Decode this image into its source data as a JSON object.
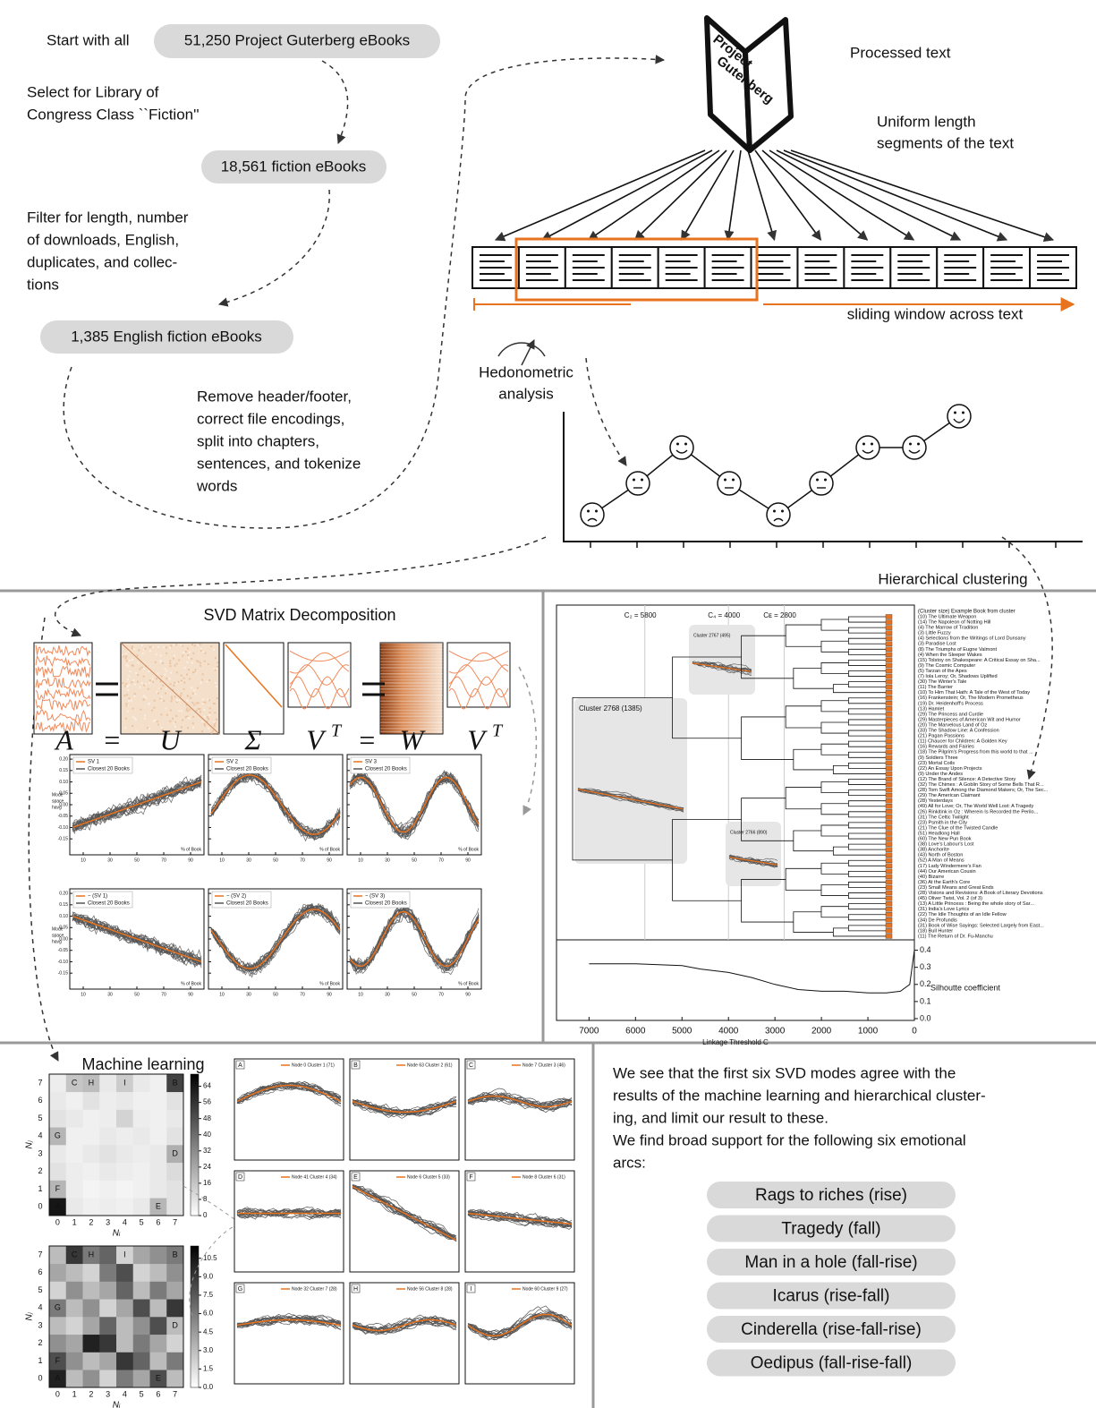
{
  "pipeline": {
    "start": "Start with all",
    "boxes": [
      "51,250 Project Guterberg eBooks",
      "18,561 fiction eBooks",
      "1,385 English fiction eBooks"
    ],
    "steps": [
      [
        "Select for Library of",
        "Congress Class ``Fiction''"
      ],
      [
        "Filter for length, number",
        "of downloads, English,",
        "duplicates, and collec-",
        "tions"
      ],
      [
        "Remove header/footer,",
        "correct file encodings,",
        "split into chapters,",
        "sentences, and tokenize",
        "words"
      ]
    ]
  },
  "processing": {
    "book_title": [
      "Project",
      "Gutenberg"
    ],
    "processed": "Processed text",
    "segments": [
      "Uniform length",
      "segments of the text"
    ],
    "window": "sliding window across text",
    "hedonometric": [
      "Hedonometric",
      "analysis"
    ]
  },
  "svd": {
    "title": "SVD Matrix Decomposition",
    "equation": [
      {
        "text": "A"
      },
      {
        "text": "="
      },
      {
        "text": "U"
      },
      {
        "text": "Σ"
      },
      {
        "text": "V",
        "sup": "T"
      },
      {
        "text": "="
      },
      {
        "text": "W"
      },
      {
        "text": "V",
        "sup": "T"
      }
    ],
    "panels": [
      "SV 1",
      "SV 2",
      "SV 3",
      "− (SV 1)",
      "− (SV 2)",
      "− (SV 3)"
    ],
    "closest": "Closest 20 Books",
    "ylabel": [
      "Mode",
      "space",
      "havg"
    ],
    "xlabel": "% of Book",
    "xlim": [
      0,
      100
    ],
    "ylim": [
      -0.22,
      0.22
    ],
    "xticks": [
      10,
      30,
      50,
      70,
      90
    ],
    "yticks": [
      {
        "value": 0.2,
        "label": "0.20"
      },
      {
        "value": 0.15,
        "label": "0.15"
      },
      {
        "value": 0.1,
        "label": "0.10"
      },
      {
        "value": 0.05,
        "label": "0.05"
      },
      {
        "value": 0,
        "label": "0.00"
      },
      {
        "value": -0.05,
        "label": "-0.05"
      },
      {
        "value": -0.1,
        "label": "-0.10"
      },
      {
        "value": -0.15,
        "label": "-0.15"
      }
    ]
  },
  "clustering": {
    "title": "Hierarchical clustering",
    "list_header": "(Cluster size) Example Book from cluster",
    "books": [
      "(10) The Ultimate Weapon",
      "(14) The Napoleon of Notting Hill",
      "(4) The Marrow of Tradition",
      "(3) Little Fuzzy",
      "(4) Selections from the Writings of Lord Dunsany",
      "(3) Paradise Lost",
      "(8) The Triumphs of Eugne Valmont",
      "(4) When the Sleeper Wakes",
      "(15) Tolstoy on Shakespeare: A Critical Essay on Sha...",
      "(9) The Cosmic Computer",
      "(5) Tarzan of the Apes",
      "(7) Iola Leroy; Or, Shadows Uplifted",
      "(30) The Winter's Tale",
      "(11) The Barrier",
      "(10) To Him That Hath: A Tale of the West of Today",
      "(16) Frankenstein; Or, The Modern Prometheus",
      "(19) Dr. Heidenhoff's Process",
      "(13) Hamlet",
      "(29) The Princess and Curdie",
      "(29) Masterpieces of American Wit and Humor",
      "(20) The Marvelous Land of Oz",
      "(33) The Shadow Line: A Confession",
      "(21) Pagan Passions",
      "(11) Chaucer for Children: A Golden Key",
      "(16) Rewards and Fairies",
      "(18) The Pilgrim's Progress from this world to that ...",
      "(9) Soldiers Three",
      "(23) Mortal Coils",
      "(22) An Essay Upon Projects",
      "(9) Under the Andes",
      "(12) The Brand of Silence: A Detective Story",
      "(32) The Chimes : A Goblin Story of Some Bells That R...",
      "(28) Tom Swift Among the Diamond Makers; Or, The Sec...",
      "(29) The American Claimant",
      "(28) Yesterdays",
      "(49) All for Love; Or, The World Well Lost: A Tragedy",
      "(26) Rinkitink in Oz : Wherein Is Recorded the Perilo...",
      "(31) The Celtic Twilight",
      "(23) Psmith in the City",
      "(21) The Clue of the Twisted Candle",
      "(51) Headlong Hall",
      "(60) The New Pun Book",
      "(38) Love's Labour's Lost",
      "(38) Anchorite",
      "(43) North of Boston",
      "(52) A Man of Means",
      "(17) Lady Windermere's Fan",
      "(44) Our American Cousin",
      "(40) Bizarre",
      "(36) At the Earth's Core",
      "(23) Small Means and Great Ends",
      "(28) Visions and Revisions: A Book of Literary Devotions",
      "(45) Oliver Twist, Vol. 2 (of 3)",
      "(13) A Little Princess : Being the whole story of Sar...",
      "(31) India's Love Lyrics",
      "(22) The Idle Thoughts of an Idle Fellow",
      "(34) De Profundis",
      "(31) Book of Wise Sayings: Selected Largely from East...",
      "(18) Bull Hunter",
      "(11) The Return of Dr. Fu-Manchu"
    ],
    "thresholds": [
      {
        "value": 5800,
        "label": "C₂ = 5800"
      },
      {
        "value": 4000,
        "label": "C₄ = 4000"
      },
      {
        "value": 2800,
        "label": "Cᴇ = 2800"
      }
    ],
    "clusters": [
      "Cluster 2768 (1385)",
      "Cluster 2767 (495)",
      "Cluster 2766 (890)"
    ],
    "xlabel": "Linkage Threshold  C",
    "xlim": [
      7700,
      0
    ],
    "xticks": [
      7000,
      6000,
      5000,
      4000,
      3000,
      2000,
      1000,
      0
    ],
    "silhouette": {
      "label": "Silhoutte coefficient",
      "ylim": [
        0,
        0.45
      ],
      "yticks": [
        {
          "value": 0,
          "label": "0.0"
        },
        {
          "value": 0.1,
          "label": "0.1"
        },
        {
          "value": 0.2,
          "label": "0.2"
        },
        {
          "value": 0.3,
          "label": "0.3"
        },
        {
          "value": 0.4,
          "label": "0.4"
        }
      ],
      "x": [
        7000,
        6000,
        5000,
        4600,
        4000,
        3500,
        3000,
        2500,
        2000,
        1500,
        1000,
        600,
        300,
        100,
        0
      ],
      "values": [
        0.32,
        0.32,
        0.31,
        0.29,
        0.27,
        0.24,
        0.2,
        0.17,
        0.16,
        0.16,
        0.15,
        0.15,
        0.16,
        0.2,
        0.4
      ]
    }
  },
  "ml": {
    "title": "Machine learning",
    "xlabel": "Nᵢ",
    "ylabel": "Nⱼ",
    "ticks": [
      0,
      1,
      2,
      3,
      4,
      5,
      6,
      7
    ],
    "heatmaps": [
      {
        "clim": [
          0,
          70
        ],
        "cbticks": [
          0,
          8,
          16,
          24,
          32,
          40,
          48,
          56,
          64
        ],
        "values": [
          [
            64,
            6,
            4,
            5,
            4,
            6,
            20,
            8
          ],
          [
            20,
            5,
            3,
            4,
            3,
            4,
            6,
            8
          ],
          [
            8,
            5,
            4,
            6,
            5,
            4,
            6,
            10
          ],
          [
            6,
            4,
            6,
            8,
            6,
            5,
            6,
            22
          ],
          [
            20,
            4,
            4,
            6,
            5,
            6,
            4,
            8
          ],
          [
            8,
            6,
            4,
            5,
            12,
            5,
            4,
            6
          ],
          [
            6,
            4,
            8,
            5,
            6,
            4,
            4,
            8
          ],
          [
            5,
            16,
            18,
            6,
            14,
            6,
            4,
            52
          ]
        ]
      },
      {
        "clim": [
          0,
          11.5
        ],
        "cbticks": [
          {
            "value": 0,
            "label": "0.0"
          },
          {
            "value": 1.5,
            "label": "1.5"
          },
          {
            "value": 3,
            "label": "3.0"
          },
          {
            "value": 4.5,
            "label": "4.5"
          },
          {
            "value": 6,
            "label": "6.0"
          },
          {
            "value": 7.5,
            "label": "7.5"
          },
          {
            "value": 9,
            "label": "9.0"
          },
          {
            "value": 10.5,
            "label": "10.5"
          }
        ],
        "values": [
          [
            10,
            3,
            5,
            2,
            6,
            4,
            8,
            3
          ],
          [
            8,
            5,
            3,
            4,
            9,
            7,
            3,
            6
          ],
          [
            5,
            4,
            10,
            9,
            3,
            6,
            4,
            2
          ],
          [
            3,
            2,
            4,
            7,
            3,
            5,
            8,
            3
          ],
          [
            6,
            3,
            5,
            2,
            4,
            8,
            3,
            9
          ],
          [
            2,
            5,
            3,
            4,
            7,
            3,
            6,
            4
          ],
          [
            4,
            3,
            2,
            6,
            8,
            2,
            3,
            5
          ],
          [
            3,
            9,
            6,
            7,
            2,
            4,
            5,
            6
          ]
        ]
      }
    ],
    "nodes": [
      {
        "label": "A",
        "cell": [
          0,
          0
        ]
      },
      {
        "label": "B",
        "cell": [
          7,
          7
        ]
      },
      {
        "label": "C",
        "cell": [
          1,
          7
        ]
      },
      {
        "label": "D",
        "cell": [
          7,
          3
        ]
      },
      {
        "label": "E",
        "cell": [
          6,
          0
        ]
      },
      {
        "label": "F",
        "cell": [
          0,
          1
        ]
      },
      {
        "label": "G",
        "cell": [
          0,
          4
        ]
      },
      {
        "label": "H",
        "cell": [
          2,
          7
        ]
      },
      {
        "label": "I",
        "cell": [
          4,
          7
        ]
      }
    ],
    "panels": [
      "Node 0 Cluster 1 (71)",
      "Node 63 Cluster 2 (61)",
      "Node 7 Cluster 3 (46)",
      "Node 41 Cluster 4 (34)",
      "Node 6 Cluster 5 (33)",
      "Node 8 Cluster 6 (31)",
      "Node 32 Cluster 7 (28)",
      "Node 56 Cluster 8 (28)",
      "Node 60 Cluster 9 (27)"
    ]
  },
  "summary": {
    "paragraph": [
      "We see that the first six SVD modes agree with the",
      "results of the machine learning and hierarchical cluster-",
      "ing, and limit our result to these.",
      "We find broad support for the following six emotional",
      "arcs:"
    ],
    "arcs": [
      "Rags to riches (rise)",
      "Tragedy (fall)",
      "Man in a hole (fall-rise)",
      "Icarus (rise-fall)",
      "Cinderella (rise-fall-rise)",
      "Oedipus (fall-rise-fall)"
    ]
  }
}
